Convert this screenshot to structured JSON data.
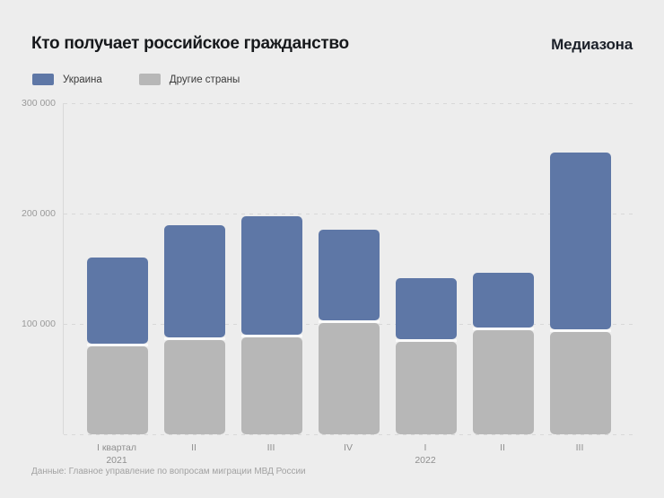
{
  "header": {
    "title": "Кто получает российское гражданство",
    "brand": "Медиазона"
  },
  "legend": {
    "items": [
      {
        "label": "Украина",
        "color": "#5e77a6"
      },
      {
        "label": "Другие страны",
        "color": "#b7b7b7"
      }
    ]
  },
  "footer": {
    "source": "Данные: Главное управление по вопросам миграции МВД России"
  },
  "chart_data": {
    "type": "bar",
    "stacked": true,
    "title": "Кто получает российское гражданство",
    "categories": [
      "I квартал\n2021",
      "II",
      "III",
      "IV",
      "I\n2022",
      "II",
      "III"
    ],
    "series": [
      {
        "name": "Украина",
        "color": "#5e77a6",
        "stack_position": "top",
        "values": [
          80500,
          104000,
          109500,
          84500,
          57500,
          52500,
          162000
        ]
      },
      {
        "name": "Другие страны",
        "color": "#b7b7b7",
        "stack_position": "bottom",
        "values": [
          79500,
          85500,
          88000,
          100500,
          84000,
          94000,
          93000
        ]
      }
    ],
    "totals": [
      160000,
      189500,
      197500,
      185000,
      141500,
      146500,
      255000
    ],
    "xlabel": "",
    "ylabel": "",
    "ylim": [
      0,
      300000
    ],
    "yticks": [
      {
        "value": 100000,
        "label": "100 000"
      },
      {
        "value": 200000,
        "label": "200 000"
      },
      {
        "value": 300000,
        "label": "300 000"
      }
    ],
    "grid": "horizontal-dashed",
    "baseline_dashed": true,
    "legend_position": "top-left",
    "background": "#ededed",
    "segment_gap_color": "#fafafa"
  }
}
